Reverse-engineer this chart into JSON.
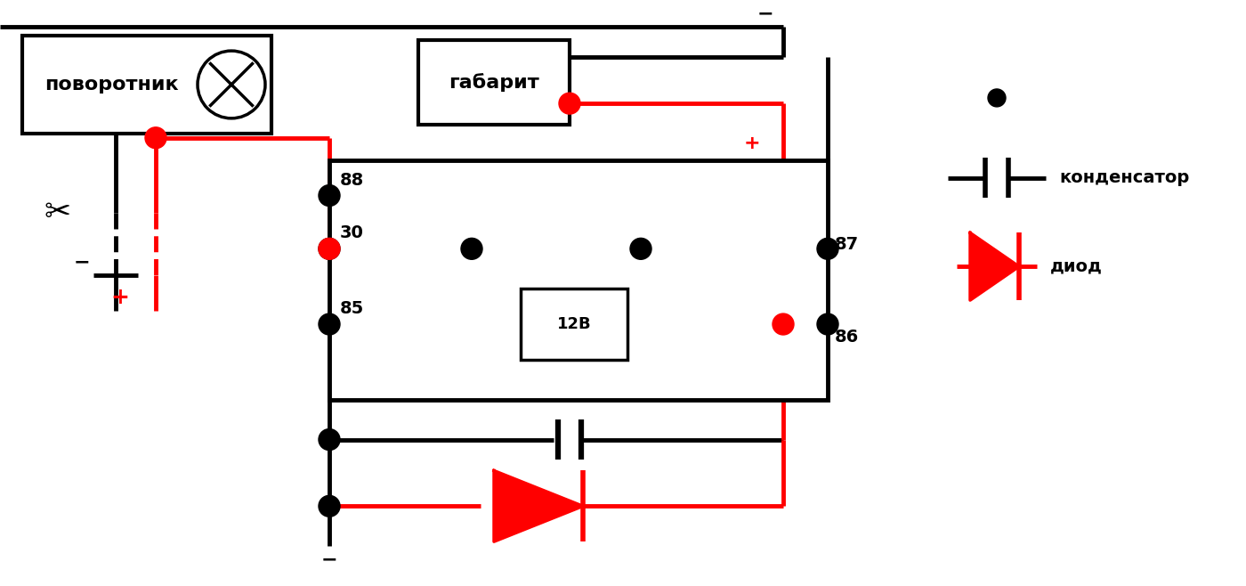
{
  "bg_color": "#ffffff",
  "black": "#000000",
  "red": "#ff0000",
  "linewidth_thick": 3.5,
  "labels": {
    "pov": "поворотник",
    "gab": "габарит",
    "l88": "88",
    "l30": "30",
    "l87": "87",
    "l85": "85",
    "l86": "86",
    "l12v": "12В",
    "minus": "−",
    "plus": "+",
    "cond_label": "конденсатор",
    "diod_label": "диод"
  }
}
